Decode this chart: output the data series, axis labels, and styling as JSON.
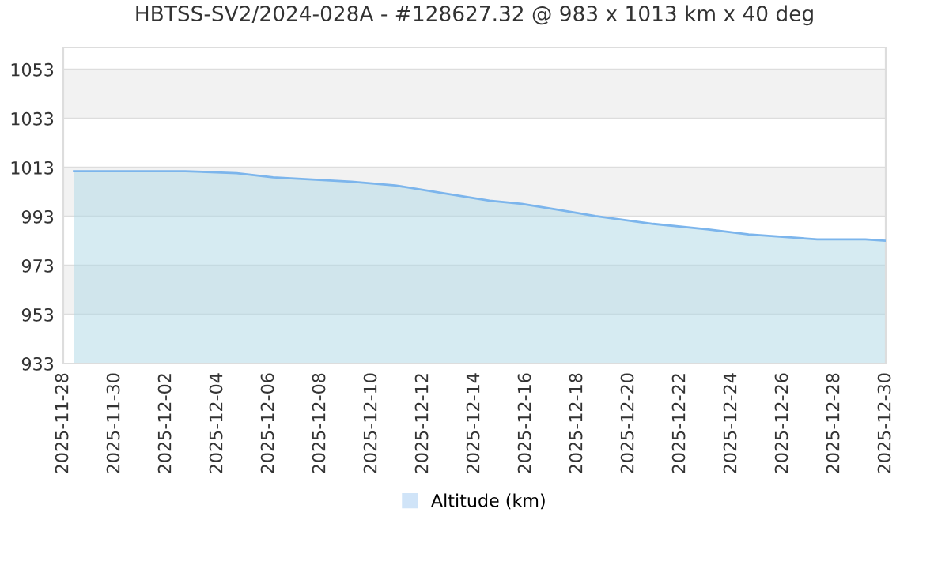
{
  "chart_data": {
    "type": "area",
    "title": "HBTSS-SV2/2024-028A - #128627.32 @ 983 x 1013 km x 40 deg",
    "x": [
      "2025-11-28T10:00",
      "2025-12-02T18:00",
      "2025-12-04T18:00",
      "2025-12-06T04:00",
      "2025-12-09T05:00",
      "2025-12-10T22:00",
      "2025-12-12T23:00",
      "2025-12-14T14:00",
      "2025-12-15T20:00",
      "2025-12-17T06:00",
      "2025-12-18T17:00",
      "2025-12-20T23:00",
      "2025-12-23T01:00",
      "2025-12-24T16:00",
      "2025-12-27T08:00",
      "2025-12-29T05:00",
      "2025-12-30T00:00"
    ],
    "series": [
      {
        "name": "Altitude (km)",
        "color": "#7cb5ec",
        "values": [
          1011.5,
          1011.5,
          1010.7,
          1009.0,
          1007.2,
          1005.7,
          1002.2,
          999.5,
          998.2,
          995.8,
          993.2,
          990.0,
          987.8,
          985.7,
          983.7,
          983.7,
          983.1
        ]
      }
    ],
    "xlim": [
      "2025-11-28",
      "2025-12-30"
    ],
    "xticks": [
      "2025-11-28",
      "2025-11-30",
      "2025-12-02",
      "2025-12-04",
      "2025-12-06",
      "2025-12-08",
      "2025-12-10",
      "2025-12-12",
      "2025-12-14",
      "2025-12-16",
      "2025-12-18",
      "2025-12-20",
      "2025-12-22",
      "2025-12-24",
      "2025-12-26",
      "2025-12-28",
      "2025-12-30"
    ],
    "ylim": [
      933,
      1062
    ],
    "yticks": [
      933,
      953,
      973,
      993,
      1013,
      1033,
      1053
    ],
    "bands": [
      {
        "axis": "y",
        "from": 1033,
        "to": 1053,
        "color": "#f2f2f2"
      },
      {
        "axis": "y",
        "from": 993,
        "to": 1013,
        "color": "#f2f2f2"
      },
      {
        "axis": "y",
        "from": 953,
        "to": 973,
        "color": "#f2f2f2"
      }
    ],
    "grid": "y",
    "legend": "bottom"
  }
}
